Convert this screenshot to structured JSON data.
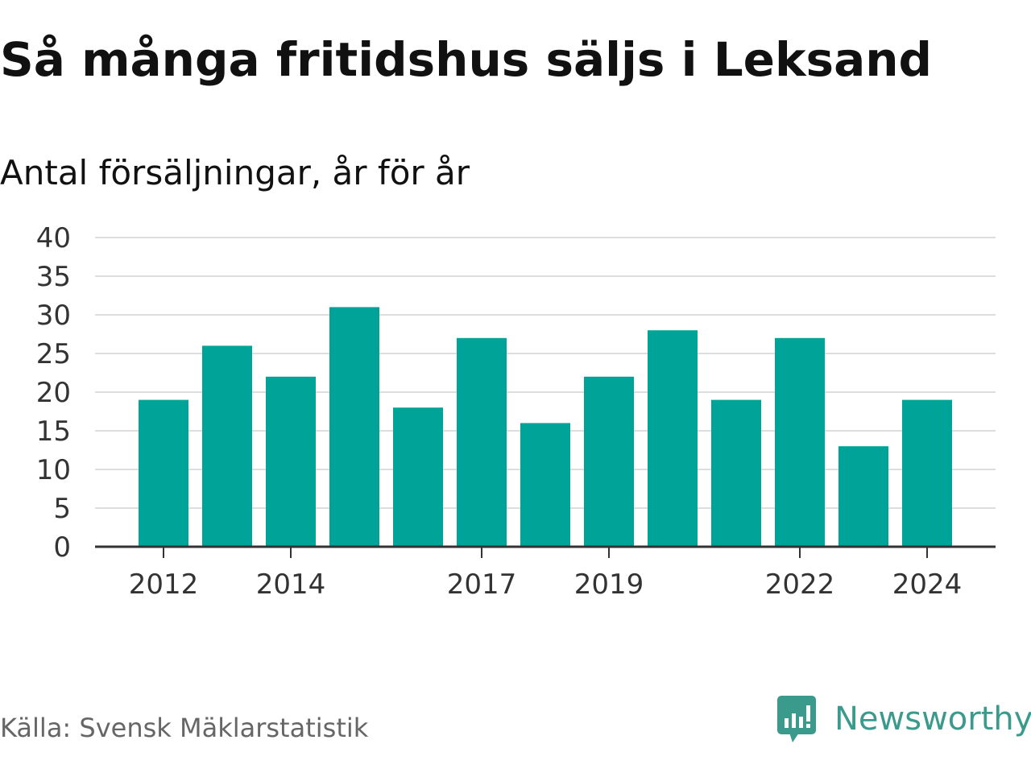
{
  "title": "Så många fritidshus säljs i Leksand",
  "subtitle": "Antal försäljningar, år för år",
  "source": "Källa: Svensk Mäklarstatistik",
  "brand": "Newsworthy",
  "colors": {
    "bar": "#00a398",
    "grid": "#dddddd",
    "axis": "#333333",
    "brand": "#3a9a8c"
  },
  "chart_data": {
    "type": "bar",
    "categories": [
      "2012",
      "2013",
      "2014",
      "2015",
      "2016",
      "2017",
      "2018",
      "2019",
      "2020",
      "2021",
      "2022",
      "2023",
      "2024"
    ],
    "values": [
      19,
      26,
      22,
      31,
      18,
      27,
      16,
      22,
      28,
      19,
      27,
      13,
      19
    ],
    "xtick_labels": [
      "2012",
      "2014",
      "2017",
      "2019",
      "2022",
      "2024"
    ],
    "ytick_labels": [
      "0",
      "5",
      "10",
      "15",
      "20",
      "25",
      "30",
      "35",
      "40"
    ],
    "ylim": [
      0,
      40
    ],
    "grid": true,
    "title": "Så många fritidshus säljs i Leksand",
    "ylabel": "Antal försäljningar, år för år",
    "xlabel": ""
  }
}
